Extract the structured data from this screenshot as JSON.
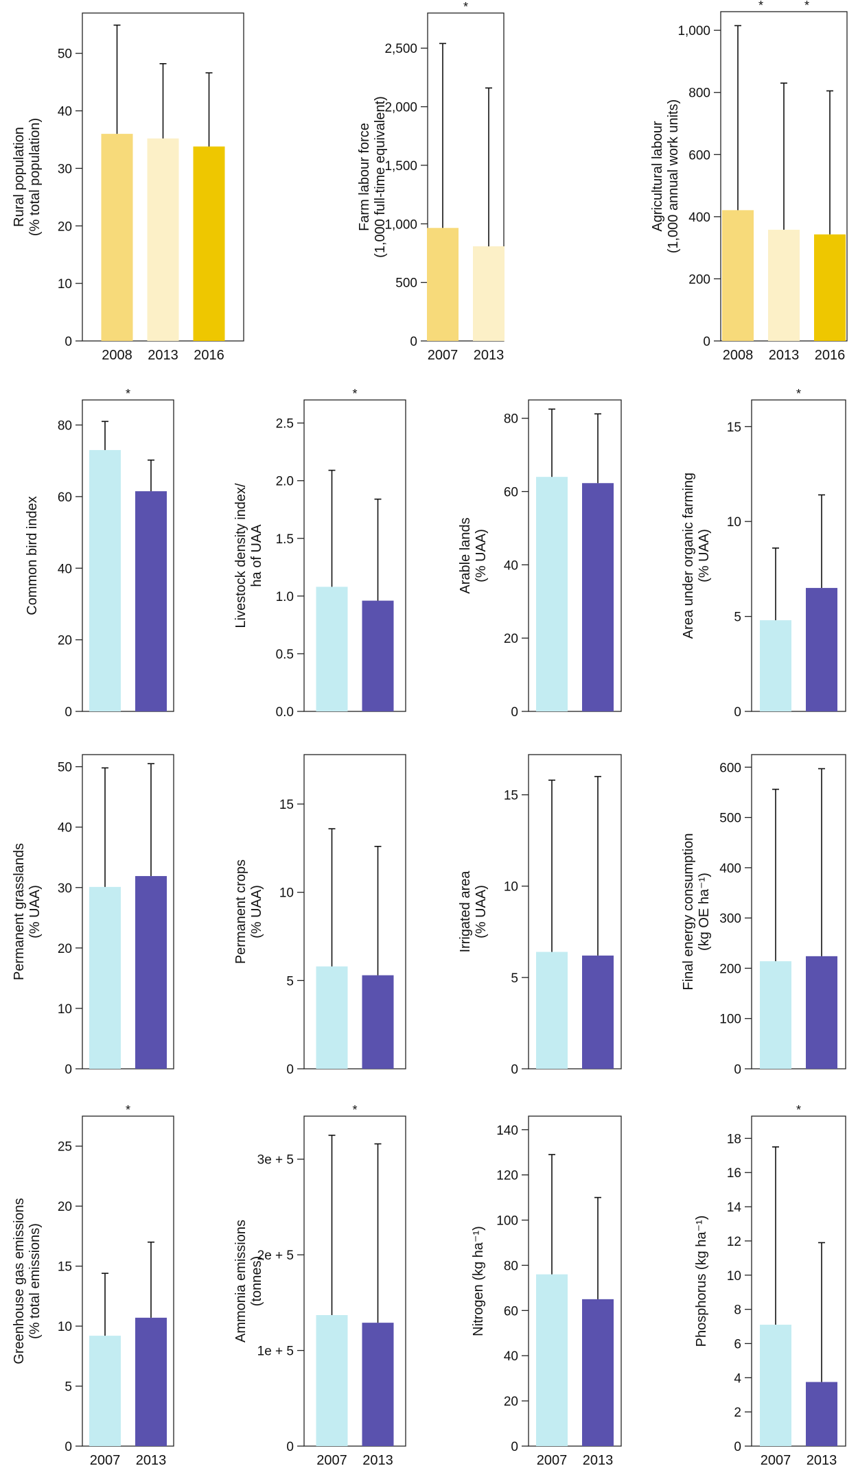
{
  "colors": {
    "c2008": "#F7DA7A",
    "c2013y": "#FCF0C7",
    "c2016": "#EEC700",
    "c2007b": "#C3ECF2",
    "c2013b": "#5A52AE",
    "axis": "#222222"
  },
  "chart_data": [
    {
      "type": "bar",
      "title": "",
      "ylabel": [
        "Rural population",
        "(% total population)"
      ],
      "ylim": [
        0,
        57
      ],
      "ticks": [
        0,
        10,
        20,
        30,
        40,
        50
      ],
      "tick_labels": [
        "0",
        "10",
        "20",
        "30",
        "40",
        "50"
      ],
      "categories": [
        "2008",
        "2013",
        "2016"
      ],
      "values": [
        36,
        35.2,
        33.8
      ],
      "err_upper": [
        54.9,
        48.2,
        46.6
      ],
      "colors": [
        "c2008",
        "c2013y",
        "c2016"
      ],
      "stars": [],
      "show_xlabels": true
    },
    {
      "type": "bar",
      "title": "",
      "ylabel": [
        "Farm labour force",
        "(1,000 full-time equivalent)"
      ],
      "ylim": [
        0,
        2800
      ],
      "ticks": [
        0,
        500,
        1000,
        1500,
        2000,
        2500
      ],
      "tick_labels": [
        "0",
        "500",
        "1,000",
        "1,500",
        "2,000",
        "2,500"
      ],
      "categories": [
        "2007",
        "2013"
      ],
      "values": [
        965,
        808
      ],
      "err_upper": [
        2540,
        2160
      ],
      "colors": [
        "c2008",
        "c2013y"
      ],
      "stars": [
        "*"
      ],
      "show_xlabels": true
    },
    {
      "type": "bar",
      "title": "",
      "ylabel": [
        "Agricultural labour",
        "(1,000 annual work units)"
      ],
      "ylim": [
        0,
        1060
      ],
      "ticks": [
        0,
        200,
        400,
        600,
        800,
        1000
      ],
      "tick_labels": [
        "0",
        "200",
        "400",
        "600",
        "800",
        "1,000"
      ],
      "categories": [
        "2008",
        "2013",
        "2016"
      ],
      "values": [
        421,
        358,
        343
      ],
      "err_upper": [
        1015,
        830,
        805
      ],
      "colors": [
        "c2008",
        "c2013y",
        "c2016"
      ],
      "stars": [
        "*",
        "*"
      ],
      "show_xlabels": true
    },
    {
      "type": "bar",
      "title": "",
      "ylabel": [
        "Common bird index"
      ],
      "ylim": [
        0,
        87
      ],
      "ticks": [
        0,
        20,
        40,
        60,
        80
      ],
      "tick_labels": [
        "0",
        "20",
        "40",
        "60",
        "80"
      ],
      "categories": [
        "2007",
        "2013"
      ],
      "values": [
        73,
        61.5
      ],
      "err_upper": [
        81,
        70.2
      ],
      "colors": [
        "c2007b",
        "c2013b"
      ],
      "stars": [
        "*"
      ],
      "show_xlabels": false
    },
    {
      "type": "bar",
      "title": "",
      "ylabel": [
        "Livestock density index/",
        "ha of UAA"
      ],
      "ylim": [
        0,
        2.7
      ],
      "ticks": [
        0,
        0.5,
        1,
        1.5,
        2,
        2.5
      ],
      "tick_labels": [
        "0.0",
        "0.5",
        "1.0",
        "1.5",
        "2.0",
        "2.5"
      ],
      "categories": [
        "2007",
        "2013"
      ],
      "values": [
        1.08,
        0.96
      ],
      "err_upper": [
        2.09,
        1.84
      ],
      "colors": [
        "c2007b",
        "c2013b"
      ],
      "stars": [
        "*"
      ],
      "show_xlabels": false
    },
    {
      "type": "bar",
      "title": "",
      "ylabel": [
        "Arable lands",
        "(% UAA)"
      ],
      "ylim": [
        0,
        85
      ],
      "ticks": [
        0,
        20,
        40,
        60,
        80
      ],
      "tick_labels": [
        "0",
        "20",
        "40",
        "60",
        "80"
      ],
      "categories": [
        "2007",
        "2013"
      ],
      "values": [
        64,
        62.3
      ],
      "err_upper": [
        82.5,
        81.2
      ],
      "colors": [
        "c2007b",
        "c2013b"
      ],
      "stars": [],
      "show_xlabels": false
    },
    {
      "type": "bar",
      "title": "",
      "ylabel": [
        "Area under organic farming",
        "(% UAA)"
      ],
      "ylim": [
        0,
        16.4
      ],
      "ticks": [
        0,
        5,
        10,
        15
      ],
      "tick_labels": [
        "0",
        "5",
        "10",
        "15"
      ],
      "categories": [
        "2007",
        "2013"
      ],
      "values": [
        4.8,
        6.5
      ],
      "err_upper": [
        8.6,
        11.4
      ],
      "colors": [
        "c2007b",
        "c2013b"
      ],
      "stars": [
        "*"
      ],
      "show_xlabels": false
    },
    {
      "type": "bar",
      "title": "",
      "ylabel": [
        "Permanent grasslands",
        "(% UAA)"
      ],
      "ylim": [
        0,
        52
      ],
      "ticks": [
        0,
        10,
        20,
        30,
        40,
        50
      ],
      "tick_labels": [
        "0",
        "10",
        "20",
        "30",
        "40",
        "50"
      ],
      "categories": [
        "2007",
        "2013"
      ],
      "values": [
        30.1,
        31.9
      ],
      "err_upper": [
        49.8,
        50.5
      ],
      "colors": [
        "c2007b",
        "c2013b"
      ],
      "stars": [],
      "show_xlabels": false
    },
    {
      "type": "bar",
      "title": "",
      "ylabel": [
        "Permanent crops",
        "(% UAA)"
      ],
      "ylim": [
        0,
        17.8
      ],
      "ticks": [
        0,
        5,
        10,
        15
      ],
      "tick_labels": [
        "0",
        "5",
        "10",
        "15"
      ],
      "categories": [
        "2007",
        "2013"
      ],
      "values": [
        5.8,
        5.3
      ],
      "err_upper": [
        13.6,
        12.6
      ],
      "colors": [
        "c2007b",
        "c2013b"
      ],
      "stars": [],
      "show_xlabels": false
    },
    {
      "type": "bar",
      "title": "",
      "ylabel": [
        "Irrigated area",
        "(% UAA)"
      ],
      "ylim": [
        0,
        17.2
      ],
      "ticks": [
        0,
        5,
        10,
        15
      ],
      "tick_labels": [
        "0",
        "5",
        "10",
        "15"
      ],
      "categories": [
        "2007",
        "2013"
      ],
      "values": [
        6.4,
        6.2
      ],
      "err_upper": [
        15.8,
        16
      ],
      "colors": [
        "c2007b",
        "c2013b"
      ],
      "stars": [],
      "show_xlabels": false
    },
    {
      "type": "bar",
      "title": "",
      "ylabel": [
        "Final energy consumption",
        "(kg OE ha⁻¹)"
      ],
      "ylim": [
        0,
        625
      ],
      "ticks": [
        0,
        100,
        200,
        300,
        400,
        500,
        600
      ],
      "tick_labels": [
        "0",
        "100",
        "200",
        "300",
        "400",
        "500",
        "600"
      ],
      "categories": [
        "2007",
        "2013"
      ],
      "values": [
        214,
        224
      ],
      "err_upper": [
        556,
        597
      ],
      "colors": [
        "c2007b",
        "c2013b"
      ],
      "stars": [],
      "show_xlabels": false
    },
    {
      "type": "bar",
      "title": "",
      "ylabel": [
        "Greenhouse gas emissions",
        "(% total emissions)"
      ],
      "ylim": [
        0,
        27.5
      ],
      "ticks": [
        0,
        5,
        10,
        15,
        20,
        25
      ],
      "tick_labels": [
        "0",
        "5",
        "10",
        "15",
        "20",
        "25"
      ],
      "categories": [
        "2007",
        "2013"
      ],
      "values": [
        9.2,
        10.7
      ],
      "err_upper": [
        14.4,
        17
      ],
      "colors": [
        "c2007b",
        "c2013b"
      ],
      "stars": [
        "*"
      ],
      "show_xlabels": true
    },
    {
      "type": "bar",
      "title": "",
      "ylabel": [
        "Ammonia emissions",
        "(tonnes)"
      ],
      "ylim": [
        0,
        345000
      ],
      "ticks": [
        0,
        100000,
        200000,
        300000
      ],
      "tick_labels": [
        "0",
        "1e + 5",
        "2e + 5",
        "3e + 5"
      ],
      "categories": [
        "2007",
        "2013"
      ],
      "values": [
        137000,
        129000
      ],
      "err_upper": [
        325000,
        316000
      ],
      "colors": [
        "c2007b",
        "c2013b"
      ],
      "stars": [
        "*"
      ],
      "show_xlabels": true
    },
    {
      "type": "bar",
      "title": "",
      "ylabel": [
        "Nitrogen (kg ha⁻¹)"
      ],
      "ylim": [
        0,
        146
      ],
      "ticks": [
        0,
        20,
        40,
        60,
        80,
        100,
        120,
        140
      ],
      "tick_labels": [
        "0",
        "20",
        "40",
        "60",
        "80",
        "100",
        "120",
        "140"
      ],
      "categories": [
        "2007",
        "2013"
      ],
      "values": [
        76,
        65
      ],
      "err_upper": [
        129,
        110
      ],
      "colors": [
        "c2007b",
        "c2013b"
      ],
      "stars": [],
      "show_xlabels": true
    },
    {
      "type": "bar",
      "title": "",
      "ylabel": [
        "Phosphorus (kg ha⁻¹)"
      ],
      "ylim": [
        0,
        19.3
      ],
      "ticks": [
        0,
        2,
        4,
        6,
        8,
        10,
        12,
        14,
        16,
        18
      ],
      "tick_labels": [
        "0",
        "2",
        "4",
        "6",
        "8",
        "10",
        "12",
        "14",
        "16",
        "18"
      ],
      "categories": [
        "2007",
        "2013"
      ],
      "values": [
        7.1,
        3.75
      ],
      "err_upper": [
        17.5,
        11.9
      ],
      "colors": [
        "c2007b",
        "c2013b"
      ],
      "stars": [
        "*"
      ],
      "show_xlabels": true
    }
  ]
}
